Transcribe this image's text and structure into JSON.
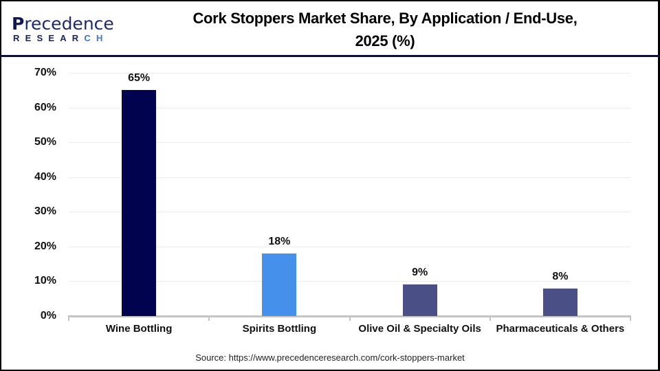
{
  "header": {
    "logo": {
      "top": "recedence",
      "initial": "P",
      "bottom_main": "RESEAR",
      "bottom_accent": "CH"
    },
    "title_line1": "Cork Stoppers Market Share, By Application / End-Use,",
    "title_line2": "2025 (%)"
  },
  "source": "Source: https://www.precedenceresearch.com/cork-stoppers-market",
  "y_ticks": [
    "70%",
    "60%",
    "50%",
    "40%",
    "30%",
    "20%",
    "10%",
    "0%"
  ],
  "bars": [
    {
      "category": "Wine Bottling",
      "value": 65,
      "label": "65%",
      "color": "#02034f"
    },
    {
      "category": "Spirits Bottling",
      "value": 18,
      "label": "18%",
      "color": "#4590ea"
    },
    {
      "category": "Olive Oil & Specialty Oils",
      "value": 9,
      "label": "9%",
      "color": "#4a4f86"
    },
    {
      "category": "Pharmaceuticals & Others",
      "value": 8,
      "label": "8%",
      "color": "#4a4f86"
    }
  ],
  "chart_data": {
    "type": "bar",
    "title": "Cork Stoppers Market Share, By Application / End-Use, 2025 (%)",
    "categories": [
      "Wine Bottling",
      "Spirits Bottling",
      "Olive Oil & Specialty Oils",
      "Pharmaceuticals & Others"
    ],
    "values": [
      65,
      18,
      9,
      8
    ],
    "data_labels": [
      "65%",
      "18%",
      "9%",
      "8%"
    ],
    "colors": [
      "#02034f",
      "#4590ea",
      "#4a4f86",
      "#4a4f86"
    ],
    "xlabel": "",
    "ylabel": "",
    "ylim": [
      0,
      70
    ],
    "y_ticks": [
      0,
      10,
      20,
      30,
      40,
      50,
      60,
      70
    ],
    "y_tick_format": "percent",
    "grid": true,
    "legend": "none",
    "source": "Source: https://www.precedenceresearch.com/cork-stoppers-market"
  }
}
